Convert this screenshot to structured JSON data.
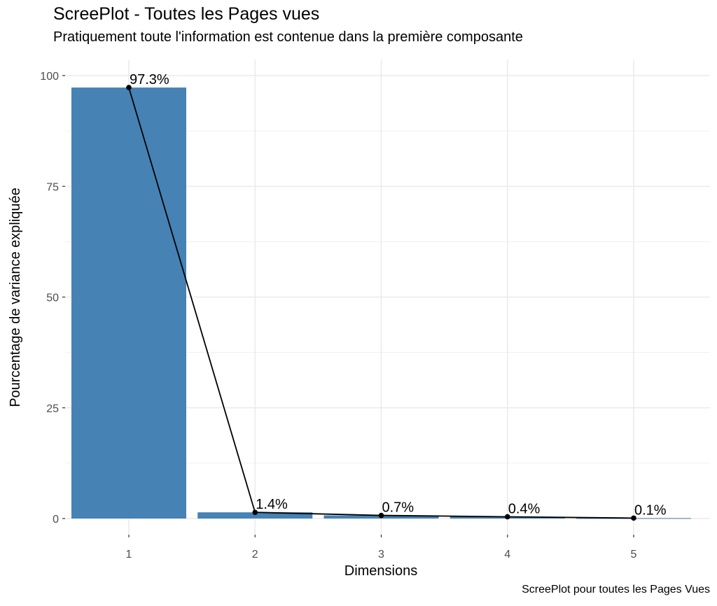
{
  "chart_data": {
    "type": "bar",
    "title": "ScreePlot - Toutes les Pages vues",
    "subtitle": "Pratiquement toute l'information est contenue dans la première composante",
    "caption": "ScreePlot pour toutes les Pages Vues",
    "xlabel": "Dimensions",
    "ylabel": "Pourcentage de variance expliquée",
    "categories": [
      "1",
      "2",
      "3",
      "4",
      "5"
    ],
    "values": [
      97.3,
      1.4,
      0.7,
      0.4,
      0.1
    ],
    "data_labels": [
      "97.3%",
      "1.4%",
      "0.7%",
      "0.4%",
      "0.1%"
    ],
    "ylim": [
      0,
      100
    ],
    "y_ticks": [
      0,
      25,
      50,
      75,
      100
    ],
    "grid": true,
    "line_overlay": true,
    "colors": {
      "bar": "#4682B4",
      "line": "#000000",
      "grid": "#EBEBEB"
    }
  }
}
